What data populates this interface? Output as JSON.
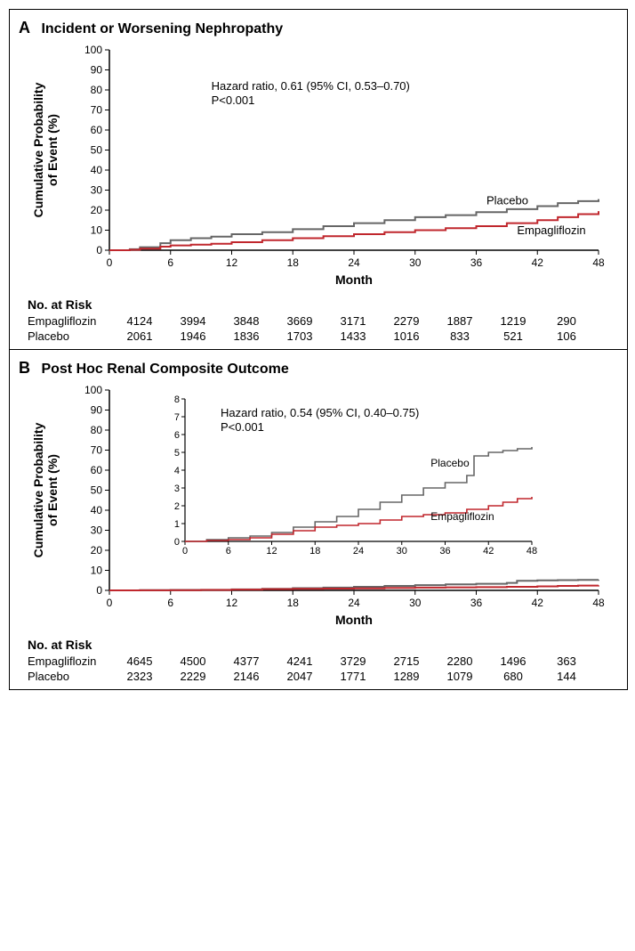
{
  "figure": {
    "panelA": {
      "letter": "A",
      "title": "Incident or Worsening Nephropathy",
      "hr_text": "Hazard ratio, 0.61 (95% CI, 0.53–0.70)",
      "p_text": "P<0.001",
      "xlabel": "Month",
      "ylabel": "Cumulative Probability\nof Event (%)",
      "xlim": [
        0,
        48
      ],
      "ylim": [
        0,
        100
      ],
      "xticks": [
        0,
        6,
        12,
        18,
        24,
        30,
        36,
        42,
        48
      ],
      "yticks": [
        0,
        10,
        20,
        30,
        40,
        50,
        60,
        70,
        80,
        90,
        100
      ],
      "series": {
        "placebo": {
          "label": "Placebo",
          "color": "#666666",
          "x": [
            0,
            2,
            3,
            5,
            6,
            8,
            10,
            12,
            15,
            18,
            21,
            24,
            27,
            30,
            33,
            36,
            39,
            42,
            44,
            46,
            48
          ],
          "y": [
            0,
            0.5,
            1.5,
            3.5,
            5.0,
            6.0,
            6.8,
            8.0,
            9.0,
            10.5,
            12.0,
            13.5,
            15.0,
            16.5,
            17.5,
            19.0,
            20.5,
            22.0,
            23.5,
            24.5,
            25.5
          ]
        },
        "empagliflozin": {
          "label": "Empagliflozin",
          "color": "#c0272d",
          "x": [
            0,
            2,
            3,
            5,
            6,
            8,
            10,
            12,
            15,
            18,
            21,
            24,
            27,
            30,
            33,
            36,
            39,
            42,
            44,
            46,
            48
          ],
          "y": [
            0,
            0.2,
            0.8,
            1.8,
            2.4,
            2.8,
            3.2,
            4.0,
            5.0,
            6.0,
            7.0,
            8.0,
            9.0,
            10.0,
            11.0,
            12.0,
            13.5,
            15.0,
            16.5,
            18.0,
            19.5
          ]
        }
      },
      "risk_title": "No. at Risk",
      "risk_rows": [
        {
          "label": "Empagliflozin",
          "values": [
            4124,
            3994,
            3848,
            3669,
            3171,
            2279,
            1887,
            1219,
            290
          ]
        },
        {
          "label": "Placebo",
          "values": [
            2061,
            1946,
            1836,
            1703,
            1433,
            1016,
            833,
            521,
            106
          ]
        }
      ],
      "style": {
        "line_width": 2,
        "axis_color": "#000000",
        "tick_fontsize": 12,
        "label_fontsize": 14
      }
    },
    "panelB": {
      "letter": "B",
      "title": "Post Hoc Renal Composite Outcome",
      "hr_text": "Hazard ratio, 0.54 (95% CI, 0.40–0.75)",
      "p_text": "P<0.001",
      "xlabel": "Month",
      "ylabel": "Cumulative Probability\nof Event (%)",
      "xlim": [
        0,
        48
      ],
      "ylim": [
        0,
        100
      ],
      "xticks": [
        0,
        6,
        12,
        18,
        24,
        30,
        36,
        42,
        48
      ],
      "yticks": [
        0,
        10,
        20,
        30,
        40,
        50,
        60,
        70,
        80,
        90,
        100
      ],
      "series": {
        "placebo": {
          "label": "Placebo",
          "color": "#666666",
          "x": [
            0,
            3,
            6,
            9,
            12,
            15,
            18,
            21,
            24,
            27,
            30,
            33,
            36,
            39,
            40,
            42,
            44,
            46,
            48
          ],
          "y": [
            0,
            0.1,
            0.2,
            0.3,
            0.5,
            0.8,
            1.1,
            1.4,
            1.8,
            2.2,
            2.6,
            3.0,
            3.3,
            3.7,
            4.8,
            5.0,
            5.1,
            5.2,
            5.3
          ]
        },
        "empagliflozin": {
          "label": "Empagliflozin",
          "color": "#c0272d",
          "x": [
            0,
            3,
            6,
            9,
            12,
            15,
            18,
            21,
            24,
            27,
            30,
            33,
            36,
            39,
            42,
            44,
            46,
            48
          ],
          "y": [
            0,
            0.05,
            0.1,
            0.2,
            0.4,
            0.6,
            0.8,
            0.9,
            1.0,
            1.2,
            1.4,
            1.5,
            1.6,
            1.8,
            2.0,
            2.2,
            2.4,
            2.5
          ]
        }
      },
      "inset": {
        "xlim": [
          0,
          48
        ],
        "ylim": [
          0,
          8
        ],
        "xticks": [
          0,
          6,
          12,
          18,
          24,
          30,
          36,
          42,
          48
        ],
        "yticks": [
          0,
          1,
          2,
          3,
          4,
          5,
          6,
          7,
          8
        ]
      },
      "risk_title": "No. at Risk",
      "risk_rows": [
        {
          "label": "Empagliflozin",
          "values": [
            4645,
            4500,
            4377,
            4241,
            3729,
            2715,
            2280,
            1496,
            363
          ]
        },
        {
          "label": "Placebo",
          "values": [
            2323,
            2229,
            2146,
            2047,
            1771,
            1289,
            1079,
            680,
            144
          ]
        }
      ],
      "style": {
        "line_width": 2,
        "axis_color": "#000000",
        "tick_fontsize": 12,
        "label_fontsize": 14
      }
    }
  }
}
